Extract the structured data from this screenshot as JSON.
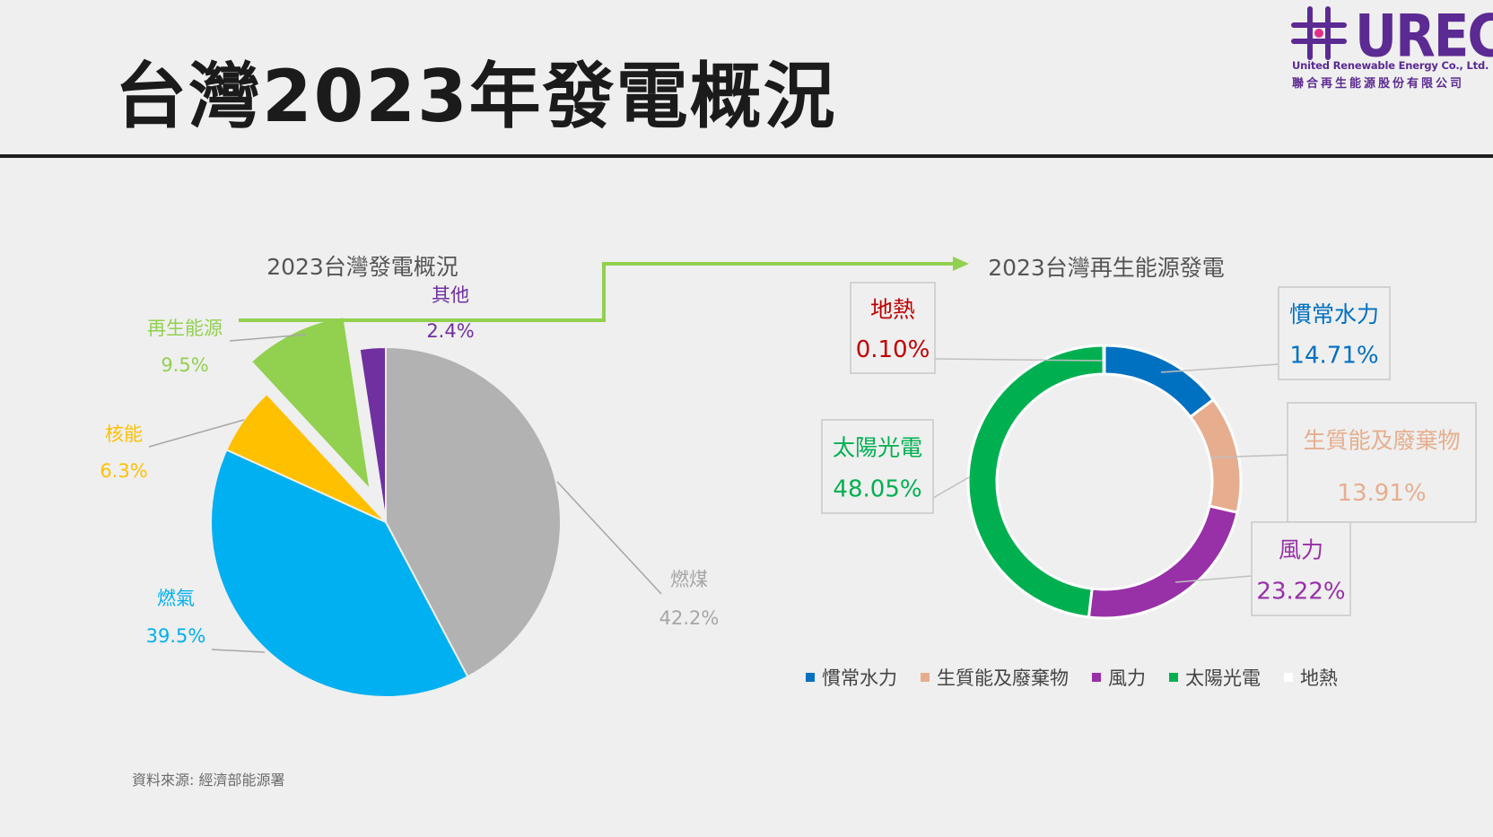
{
  "title": "台灣2023年發電概況",
  "source": "資料來源: 經濟部能源署",
  "logo": {
    "wordmark": "URECO",
    "english_name": "United Renewable Energy Co., Ltd.",
    "chinese_name": "聯合再生能源股份有限公司",
    "color": "#5b2a92"
  },
  "chart_data": [
    {
      "type": "pie",
      "title": "2023台灣發電概況",
      "slices": [
        {
          "label": "燃煤",
          "value": 42.2,
          "value_label": "42.2%",
          "color": "#b2b2b2"
        },
        {
          "label": "燃氣",
          "value": 39.5,
          "value_label": "39.5%",
          "color": "#00b0f0"
        },
        {
          "label": "核能",
          "value": 6.3,
          "value_label": "6.3%",
          "color": "#ffc000"
        },
        {
          "label": "再生能源",
          "value": 9.5,
          "value_label": "9.5%",
          "color": "#92d050",
          "exploded": true
        },
        {
          "label": "其他",
          "value": 2.4,
          "value_label": "2.4%",
          "color": "#7030a0"
        }
      ]
    },
    {
      "type": "pie",
      "subtype": "doughnut",
      "title": "2023台灣再生能源發電",
      "slices": [
        {
          "label": "慣常水力",
          "value": 14.71,
          "value_label": "14.71%",
          "color": "#0070c0"
        },
        {
          "label": "生質能及廢棄物",
          "value": 13.91,
          "value_label": "13.91%",
          "color": "#e6ae8f"
        },
        {
          "label": "風力",
          "value": 23.22,
          "value_label": "23.22%",
          "color": "#9830a8"
        },
        {
          "label": "太陽光電",
          "value": 48.05,
          "value_label": "48.05%",
          "color": "#00b050"
        },
        {
          "label": "地熱",
          "value": 0.1,
          "value_label": "0.10%",
          "color": "#ffffff",
          "label_color": "#c00000"
        }
      ],
      "legend_position": "bottom"
    }
  ]
}
